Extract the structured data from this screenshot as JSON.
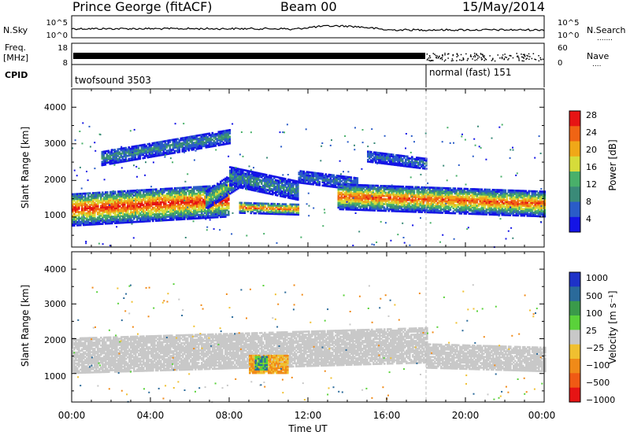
{
  "header": {
    "station": "Prince George (fitACF)",
    "beam": "Beam 00",
    "date": "15/May/2014"
  },
  "noise_panel": {
    "left_label": "N.Sky",
    "right_label": "N.Search",
    "left_ticks": [
      "10^5",
      "10^0"
    ],
    "right_ticks": [
      "10^5",
      "10^0"
    ]
  },
  "freq_panel": {
    "left_label_1": "Freq.",
    "left_label_2": "[MHz]",
    "right_label": "Nave",
    "left_ticks": [
      "18",
      "8"
    ],
    "right_ticks": [
      "60",
      "0"
    ]
  },
  "cpid": {
    "label": "CPID",
    "segments": [
      {
        "name": "twofsound 3503",
        "start_hour": 0,
        "end_hour": 18
      },
      {
        "name": "normal (fast) 151",
        "start_hour": 18,
        "end_hour": 24
      }
    ]
  },
  "x_axis": {
    "title": "Time UT",
    "ticks": [
      "00:00",
      "04:00",
      "08:00",
      "12:00",
      "16:00",
      "20:00",
      "00:00"
    ]
  },
  "panels": {
    "power": {
      "ylabel": "Slant Range [km]",
      "yticks": [
        "4000",
        "3000",
        "2000",
        "1000"
      ],
      "colorbar_label": "Power [dB]",
      "colorbar_ticks": [
        "28",
        "24",
        "20",
        "16",
        "12",
        "8",
        "4"
      ]
    },
    "velocity": {
      "ylabel": "Slant Range [km]",
      "yticks": [
        "4000",
        "3000",
        "2000",
        "1000"
      ],
      "colorbar_label": "Velocity [m s⁻¹]",
      "colorbar_ticks": [
        "1000",
        "500",
        "100",
        "25",
        "−25",
        "−100",
        "−500",
        "−1000"
      ]
    }
  },
  "chart_data": [
    {
      "type": "heatmap",
      "title": "Power",
      "xlabel": "Time UT",
      "ylabel": "Slant Range [km]",
      "xlim_hours": [
        0,
        24
      ],
      "ylim_km": [
        180,
        4500
      ],
      "colorbar": {
        "label": "Power [dB]",
        "range": [
          0,
          30
        ],
        "colors": [
          "#1414e6",
          "#2a5cc8",
          "#3a8a78",
          "#49b06a",
          "#d6dc3a",
          "#f0a818",
          "#f06414",
          "#e61414"
        ]
      },
      "bands": [
        {
          "start_hour": 0.0,
          "end_hour": 8.0,
          "center_km_start": 1200,
          "center_km_end": 1450,
          "width_km": 900,
          "peak_db": 28
        },
        {
          "start_hour": 6.8,
          "end_hour": 8.5,
          "center_km_start": 1450,
          "center_km_end": 2050,
          "width_km": 500,
          "peak_db": 16
        },
        {
          "start_hour": 8.0,
          "end_hour": 11.5,
          "center_km_start": 2100,
          "center_km_end": 1700,
          "width_km": 500,
          "peak_db": 10
        },
        {
          "start_hour": 8.5,
          "end_hour": 11.5,
          "center_km_start": 1250,
          "center_km_end": 1200,
          "width_km": 300,
          "peak_db": 26
        },
        {
          "start_hour": 11.5,
          "end_hour": 14.5,
          "center_km_start": 2100,
          "center_km_end": 1900,
          "width_km": 350,
          "peak_db": 8
        },
        {
          "start_hour": 13.5,
          "end_hour": 24.0,
          "center_km_start": 1550,
          "center_km_end": 1350,
          "width_km": 700,
          "peak_db": 26
        },
        {
          "start_hour": 15.0,
          "end_hour": 18.0,
          "center_km_start": 2650,
          "center_km_end": 2450,
          "width_km": 300,
          "peak_db": 8
        },
        {
          "start_hour": 1.5,
          "end_hour": 8.0,
          "center_km_start": 2600,
          "center_km_end": 3200,
          "width_km": 400,
          "peak_db": 10
        }
      ]
    },
    {
      "type": "heatmap",
      "title": "Velocity",
      "xlabel": "Time UT",
      "ylabel": "Slant Range [km]",
      "xlim_hours": [
        0,
        24
      ],
      "ylim_km": [
        180,
        4500
      ],
      "colorbar": {
        "label": "Velocity [m s⁻¹]",
        "ticks": [
          1000,
          500,
          100,
          25,
          -25,
          -100,
          -500,
          -1000
        ],
        "colors": [
          "#1e32c8",
          "#2a6a9a",
          "#3a9a4a",
          "#5ad23a",
          "#c8c8c8",
          "#f0c030",
          "#f08a18",
          "#f05a14",
          "#e61414"
        ]
      },
      "bands": [
        {
          "start_hour": 0.0,
          "end_hour": 18.0,
          "center_km_start": 1500,
          "center_km_end": 1800,
          "width_km": 1000,
          "velocity": 0
        },
        {
          "start_hour": 18.0,
          "end_hour": 24.0,
          "center_km_start": 1500,
          "center_km_end": 1400,
          "width_km": 700,
          "velocity": 0
        },
        {
          "start_hour": 9.0,
          "end_hour": 11.0,
          "center_km_start": 1250,
          "center_km_end": 1250,
          "width_km": 500,
          "velocity": -100
        },
        {
          "start_hour": 9.3,
          "end_hour": 9.9,
          "center_km_start": 1300,
          "center_km_end": 1300,
          "width_km": 400,
          "velocity": 100
        }
      ]
    }
  ]
}
